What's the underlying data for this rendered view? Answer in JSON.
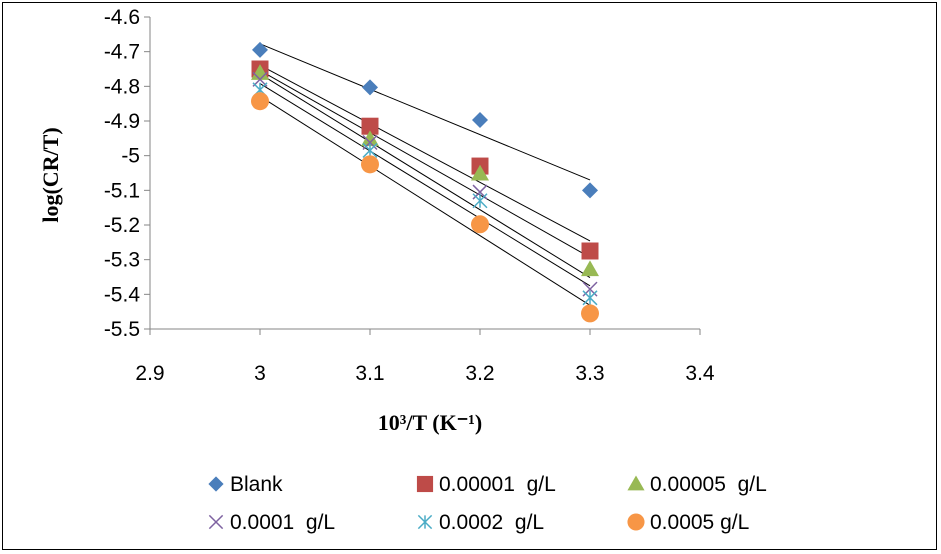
{
  "chart_data": {
    "type": "scatter",
    "title": "",
    "xlabel": "10³/T (K⁻¹)",
    "ylabel": "log(CR/T)",
    "xlim": [
      2.9,
      3.4
    ],
    "ylim": [
      -5.5,
      -4.6
    ],
    "x_ticks": [
      "2.9",
      "3",
      "3.1",
      "3.2",
      "3.3",
      "3.4"
    ],
    "y_ticks": [
      "-4.6",
      "-4.7",
      "-4.8",
      "-4.9",
      "-5",
      "-5.1",
      "-5.2",
      "-5.3",
      "-5.4",
      "-5.5"
    ],
    "grid": false,
    "legend_position": "bottom",
    "trendlines": "linear",
    "x": [
      3.0,
      3.1,
      3.2,
      3.3
    ],
    "series": [
      {
        "name": "Blank",
        "marker": "diamond",
        "color": "#4a7ebb",
        "values": [
          -4.695,
          -4.803,
          -4.897,
          -5.1
        ]
      },
      {
        "name": "0.00001  g/L",
        "marker": "square",
        "color": "#be4b48",
        "values": [
          -4.75,
          -4.915,
          -5.03,
          -5.275
        ]
      },
      {
        "name": "0.00005  g/L",
        "marker": "triangle",
        "color": "#98b954",
        "values": [
          -4.762,
          -4.953,
          -5.052,
          -5.328
        ]
      },
      {
        "name": "0.0001  g/L",
        "marker": "x",
        "color": "#7e62a1",
        "values": [
          -4.78,
          -4.962,
          -5.105,
          -5.385
        ]
      },
      {
        "name": "0.0002  g/L",
        "marker": "asterisk",
        "color": "#4bacc6",
        "values": [
          -4.81,
          -4.985,
          -5.13,
          -5.41
        ]
      },
      {
        "name": "0.0005 g/L",
        "marker": "circle",
        "color": "#f79646",
        "values": [
          -4.843,
          -5.025,
          -5.198,
          -5.455
        ]
      }
    ]
  }
}
